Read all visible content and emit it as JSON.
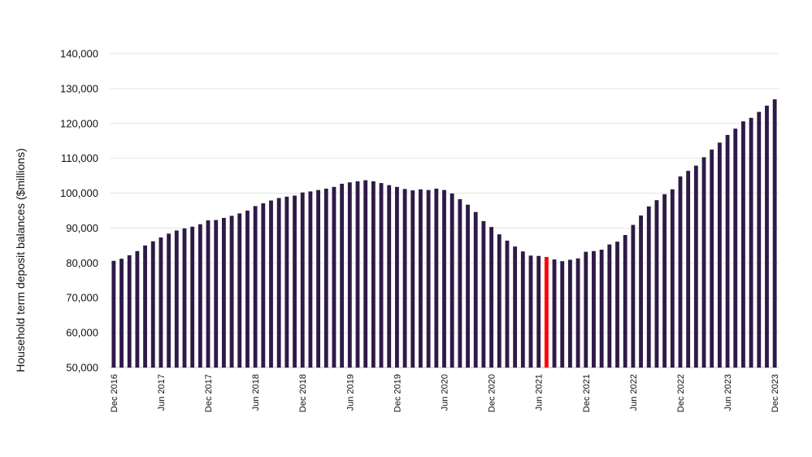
{
  "chart_data": {
    "type": "bar",
    "title": "",
    "xlabel": "",
    "ylabel": "Household term deposit balances ($millions)",
    "ylim": [
      50000,
      140000
    ],
    "yticks": [
      50000,
      60000,
      70000,
      80000,
      90000,
      100000,
      110000,
      120000,
      130000,
      140000
    ],
    "ytick_labels": [
      "50,000",
      "60,000",
      "70,000",
      "80,000",
      "90,000",
      "100,000",
      "110,000",
      "120,000",
      "130,000",
      "140,000"
    ],
    "grid": true,
    "legend": "none",
    "bar_color": "#2e1a47",
    "highlight_color": "#ff0000",
    "highlight_index": 55,
    "xtick_labels": [
      {
        "index": 0,
        "label": "Dec 2016"
      },
      {
        "index": 6,
        "label": "Jun 2017"
      },
      {
        "index": 12,
        "label": "Dec 2017"
      },
      {
        "index": 18,
        "label": "Jun 2018"
      },
      {
        "index": 24,
        "label": "Dec 2018"
      },
      {
        "index": 30,
        "label": "Jun 2019"
      },
      {
        "index": 36,
        "label": "Dec 2019"
      },
      {
        "index": 42,
        "label": "Jun 2020"
      },
      {
        "index": 48,
        "label": "Dec 2020"
      },
      {
        "index": 54,
        "label": "Jun 2021"
      },
      {
        "index": 60,
        "label": "Dec 2021"
      },
      {
        "index": 66,
        "label": "Jun 2022"
      },
      {
        "index": 72,
        "label": "Dec 2022"
      },
      {
        "index": 78,
        "label": "Jun 2023"
      },
      {
        "index": 84,
        "label": "Dec 2023"
      }
    ],
    "values": [
      80600,
      81200,
      82200,
      83400,
      85000,
      86200,
      87300,
      88400,
      89300,
      89900,
      90400,
      91100,
      92200,
      92300,
      92900,
      93500,
      94200,
      95000,
      96300,
      97100,
      97900,
      98600,
      99000,
      99300,
      100200,
      100500,
      100900,
      101300,
      101800,
      102700,
      103100,
      103400,
      103700,
      103400,
      102900,
      102300,
      101800,
      101200,
      100800,
      101100,
      100900,
      101300,
      100900,
      99900,
      98300,
      96700,
      94600,
      92000,
      90300,
      88200,
      86400,
      84700,
      83300,
      82100,
      82000,
      81700,
      81000,
      80500,
      80900,
      81300,
      83200,
      83400,
      83800,
      85300,
      86100,
      88000,
      90900,
      93600,
      96200,
      98000,
      99700,
      101100,
      104800,
      106400,
      107900,
      110300,
      112500,
      114500,
      116700,
      118500,
      120600,
      121600,
      123300,
      125100,
      126900
    ]
  }
}
